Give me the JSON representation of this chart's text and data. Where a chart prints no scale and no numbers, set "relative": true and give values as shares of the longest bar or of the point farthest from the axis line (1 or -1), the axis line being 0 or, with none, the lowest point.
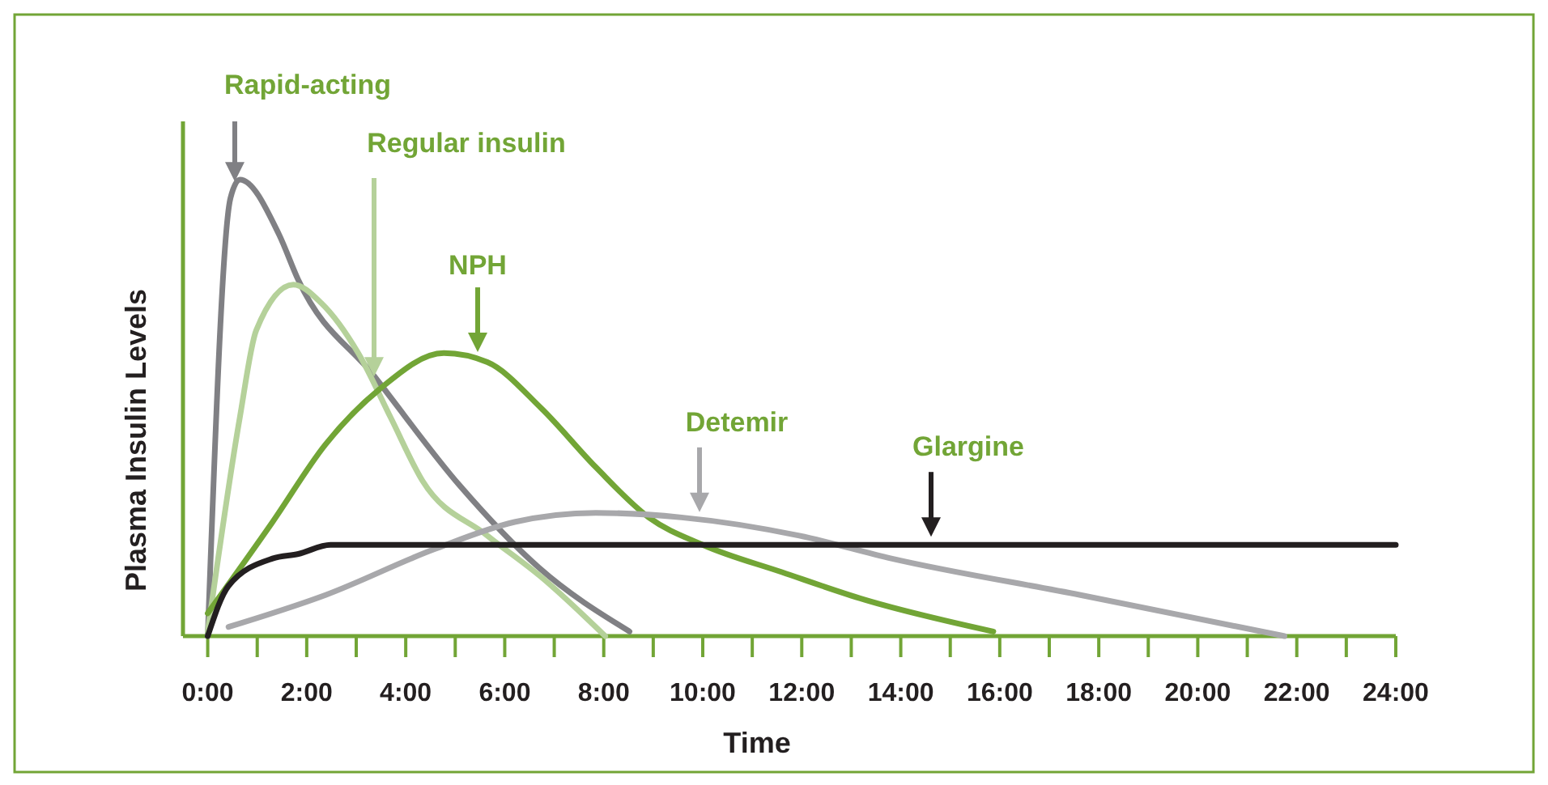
{
  "chart_data": {
    "type": "line",
    "relative": true,
    "xlabel": "Time",
    "ylabel": "Plasma Insulin Levels",
    "xlim": [
      -0.5,
      24
    ],
    "xticks": [
      {
        "value": 0,
        "label": "0:00"
      },
      {
        "value": 1,
        "label": null
      },
      {
        "value": 2,
        "label": "2:00"
      },
      {
        "value": 3,
        "label": null
      },
      {
        "value": 4,
        "label": "4:00"
      },
      {
        "value": 5,
        "label": null
      },
      {
        "value": 6,
        "label": "6:00"
      },
      {
        "value": 7,
        "label": null
      },
      {
        "value": 8,
        "label": "8:00"
      },
      {
        "value": 9,
        "label": null
      },
      {
        "value": 10,
        "label": "10:00"
      },
      {
        "value": 11,
        "label": null
      },
      {
        "value": 12,
        "label": "12:00"
      },
      {
        "value": 13,
        "label": null
      },
      {
        "value": 14,
        "label": "14:00"
      },
      {
        "value": 15,
        "label": null
      },
      {
        "value": 16,
        "label": "16:00"
      },
      {
        "value": 17,
        "label": null
      },
      {
        "value": 18,
        "label": "18:00"
      },
      {
        "value": 19,
        "label": null
      },
      {
        "value": 20,
        "label": "20:00"
      },
      {
        "value": 21,
        "label": null
      },
      {
        "value": 22,
        "label": "22:00"
      },
      {
        "value": 23,
        "label": null
      },
      {
        "value": 24,
        "label": "24:00"
      }
    ],
    "grid": false,
    "series": [
      {
        "name": "Rapid-acting",
        "color": "#808084",
        "x": [
          0,
          0.46,
          0.65,
          1.44,
          1.83,
          3.36,
          5.09,
          6.69,
          8.52
        ],
        "values": [
          0,
          0.96,
          1,
          0.88,
          0.78,
          0.57,
          0.33,
          0.15,
          0.01
        ]
      },
      {
        "name": "Regular insulin",
        "color": "#b5d19a",
        "x": [
          0,
          0.65,
          0.98,
          1.73,
          2.29,
          3.04,
          3.69,
          4.34,
          5.65,
          6.73,
          8.03
        ],
        "values": [
          0.01,
          0.48,
          0.67,
          0.77,
          0.73,
          0.62,
          0.48,
          0.34,
          0.22,
          0.13,
          0
        ]
      },
      {
        "name": "NPH",
        "color": "#72a536",
        "x": [
          0,
          1.31,
          2.38,
          3.46,
          4.77,
          5.65,
          6.73,
          7.84,
          8.91,
          10,
          11.6,
          13.26,
          15.87
        ],
        "values": [
          0.05,
          0.25,
          0.42,
          0.54,
          0.62,
          0.6,
          0.5,
          0.37,
          0.26,
          0.2,
          0.14,
          0.08,
          0.01
        ]
      },
      {
        "name": "Detemir",
        "color": "#a8a8ab",
        "x": [
          0.42,
          2.38,
          4.57,
          6.2,
          7.84,
          9.57,
          11.95,
          13.81,
          17.63,
          21.75
        ],
        "values": [
          0.02,
          0.09,
          0.19,
          0.25,
          0.27,
          0.26,
          0.22,
          0.17,
          0.09,
          0
        ]
      },
      {
        "name": "Glargine",
        "color": "#231f20",
        "x": [
          0,
          0.42,
          1.31,
          1.83,
          2.48,
          3.46,
          24
        ],
        "values": [
          0,
          0.11,
          0.17,
          0.18,
          0.2,
          0.2,
          0.2
        ]
      }
    ]
  }
}
